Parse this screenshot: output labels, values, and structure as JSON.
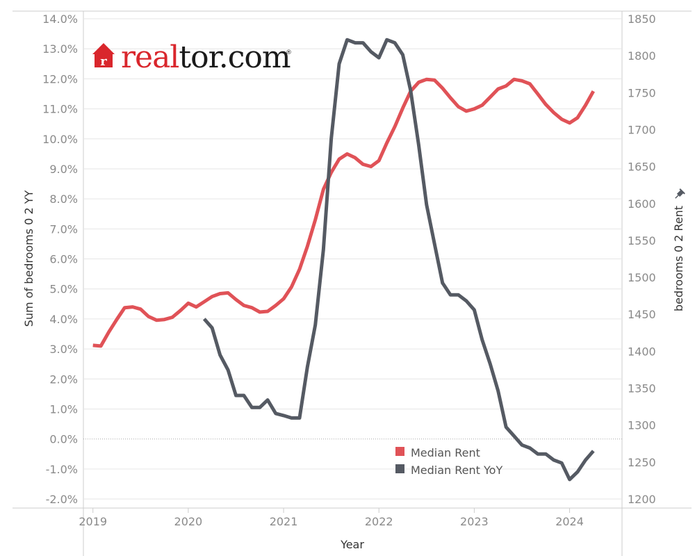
{
  "logo": {
    "mark_letter": "r",
    "text_red": "real",
    "text_dark": "tor.com",
    "trademark": "®"
  },
  "chart_data": {
    "type": "line",
    "xlabel": "Year",
    "ylabel_left": "Sum of bedrooms 0 2 YY",
    "ylabel_right": "bedrooms 0 2 Rent",
    "x_ticks": [
      "2019",
      "2020",
      "2021",
      "2022",
      "2023",
      "2024"
    ],
    "x_range": [
      2018.9,
      2024.55
    ],
    "y_left_ticks": [
      "14.0%",
      "13.0%",
      "12.0%",
      "11.0%",
      "10.0%",
      "9.0%",
      "8.0%",
      "7.0%",
      "6.0%",
      "5.0%",
      "4.0%",
      "3.0%",
      "2.0%",
      "1.0%",
      "0.0%",
      "-1.0%",
      "-2.0%"
    ],
    "y_left_range": [
      -2.0,
      14.0
    ],
    "y_right_ticks": [
      "1850",
      "1800",
      "1750",
      "1700",
      "1650",
      "1600",
      "1550",
      "1500",
      "1450",
      "1400",
      "1350",
      "1300",
      "1250",
      "1200"
    ],
    "y_right_range": [
      1200,
      1850
    ],
    "legend_position": "bottom-right",
    "colors": {
      "rent": "#e05257",
      "yoy": "#555a63",
      "grid": "#e6e6e6",
      "axis": "#cccccc"
    },
    "series": [
      {
        "name": "Median Rent",
        "axis": "right",
        "x": [
          2019.0,
          2019.083,
          2019.167,
          2019.25,
          2019.333,
          2019.417,
          2019.5,
          2019.583,
          2019.667,
          2019.75,
          2019.833,
          2019.917,
          2020.0,
          2020.083,
          2020.167,
          2020.25,
          2020.333,
          2020.417,
          2020.5,
          2020.583,
          2020.667,
          2020.75,
          2020.833,
          2020.917,
          2021.0,
          2021.083,
          2021.167,
          2021.25,
          2021.333,
          2021.417,
          2021.5,
          2021.583,
          2021.667,
          2021.75,
          2021.833,
          2021.917,
          2022.0,
          2022.083,
          2022.167,
          2022.25,
          2022.333,
          2022.417,
          2022.5,
          2022.583,
          2022.667,
          2022.75,
          2022.833,
          2022.917,
          2023.0,
          2023.083,
          2023.167,
          2023.25,
          2023.333,
          2023.417,
          2023.5,
          2023.583,
          2023.667,
          2023.75,
          2023.833,
          2023.917,
          2024.0,
          2024.083,
          2024.167,
          2024.25
        ],
        "values": [
          1408,
          1407,
          1426,
          1443,
          1459,
          1460,
          1457,
          1447,
          1442,
          1443,
          1446,
          1455,
          1465,
          1460,
          1467,
          1474,
          1478,
          1479,
          1470,
          1462,
          1459,
          1453,
          1454,
          1462,
          1471,
          1487,
          1511,
          1542,
          1578,
          1619,
          1642,
          1660,
          1667,
          1662,
          1653,
          1650,
          1658,
          1682,
          1704,
          1729,
          1752,
          1764,
          1768,
          1767,
          1756,
          1743,
          1731,
          1725,
          1728,
          1733,
          1744,
          1755,
          1759,
          1768,
          1766,
          1762,
          1748,
          1734,
          1723,
          1714,
          1709,
          1716,
          1733,
          1752
        ]
      },
      {
        "name": "Median Rent YoY",
        "axis": "left",
        "x": [
          2020.167,
          2020.25,
          2020.333,
          2020.417,
          2020.5,
          2020.583,
          2020.667,
          2020.75,
          2020.833,
          2020.917,
          2021.0,
          2021.083,
          2021.167,
          2021.25,
          2021.333,
          2021.417,
          2021.5,
          2021.583,
          2021.667,
          2021.75,
          2021.833,
          2021.917,
          2022.0,
          2022.083,
          2022.167,
          2022.25,
          2022.333,
          2022.417,
          2022.5,
          2022.583,
          2022.667,
          2022.75,
          2022.833,
          2022.917,
          2023.0,
          2023.083,
          2023.167,
          2023.25,
          2023.333,
          2023.417,
          2023.5,
          2023.583,
          2023.667,
          2023.75,
          2023.833,
          2023.917,
          2024.0,
          2024.083,
          2024.167,
          2024.25
        ],
        "values": [
          4.0,
          3.7,
          2.8,
          2.3,
          1.45,
          1.45,
          1.05,
          1.05,
          1.3,
          0.85,
          0.78,
          0.7,
          0.7,
          2.4,
          3.8,
          6.3,
          10.0,
          12.5,
          13.3,
          13.2,
          13.2,
          12.9,
          12.7,
          13.3,
          13.2,
          12.8,
          11.6,
          9.8,
          7.8,
          6.5,
          5.2,
          4.8,
          4.8,
          4.6,
          4.3,
          3.3,
          2.5,
          1.6,
          0.4,
          0.1,
          -0.2,
          -0.3,
          -0.5,
          -0.5,
          -0.7,
          -0.8,
          -1.35,
          -1.1,
          -0.7,
          -0.4
        ]
      }
    ]
  }
}
